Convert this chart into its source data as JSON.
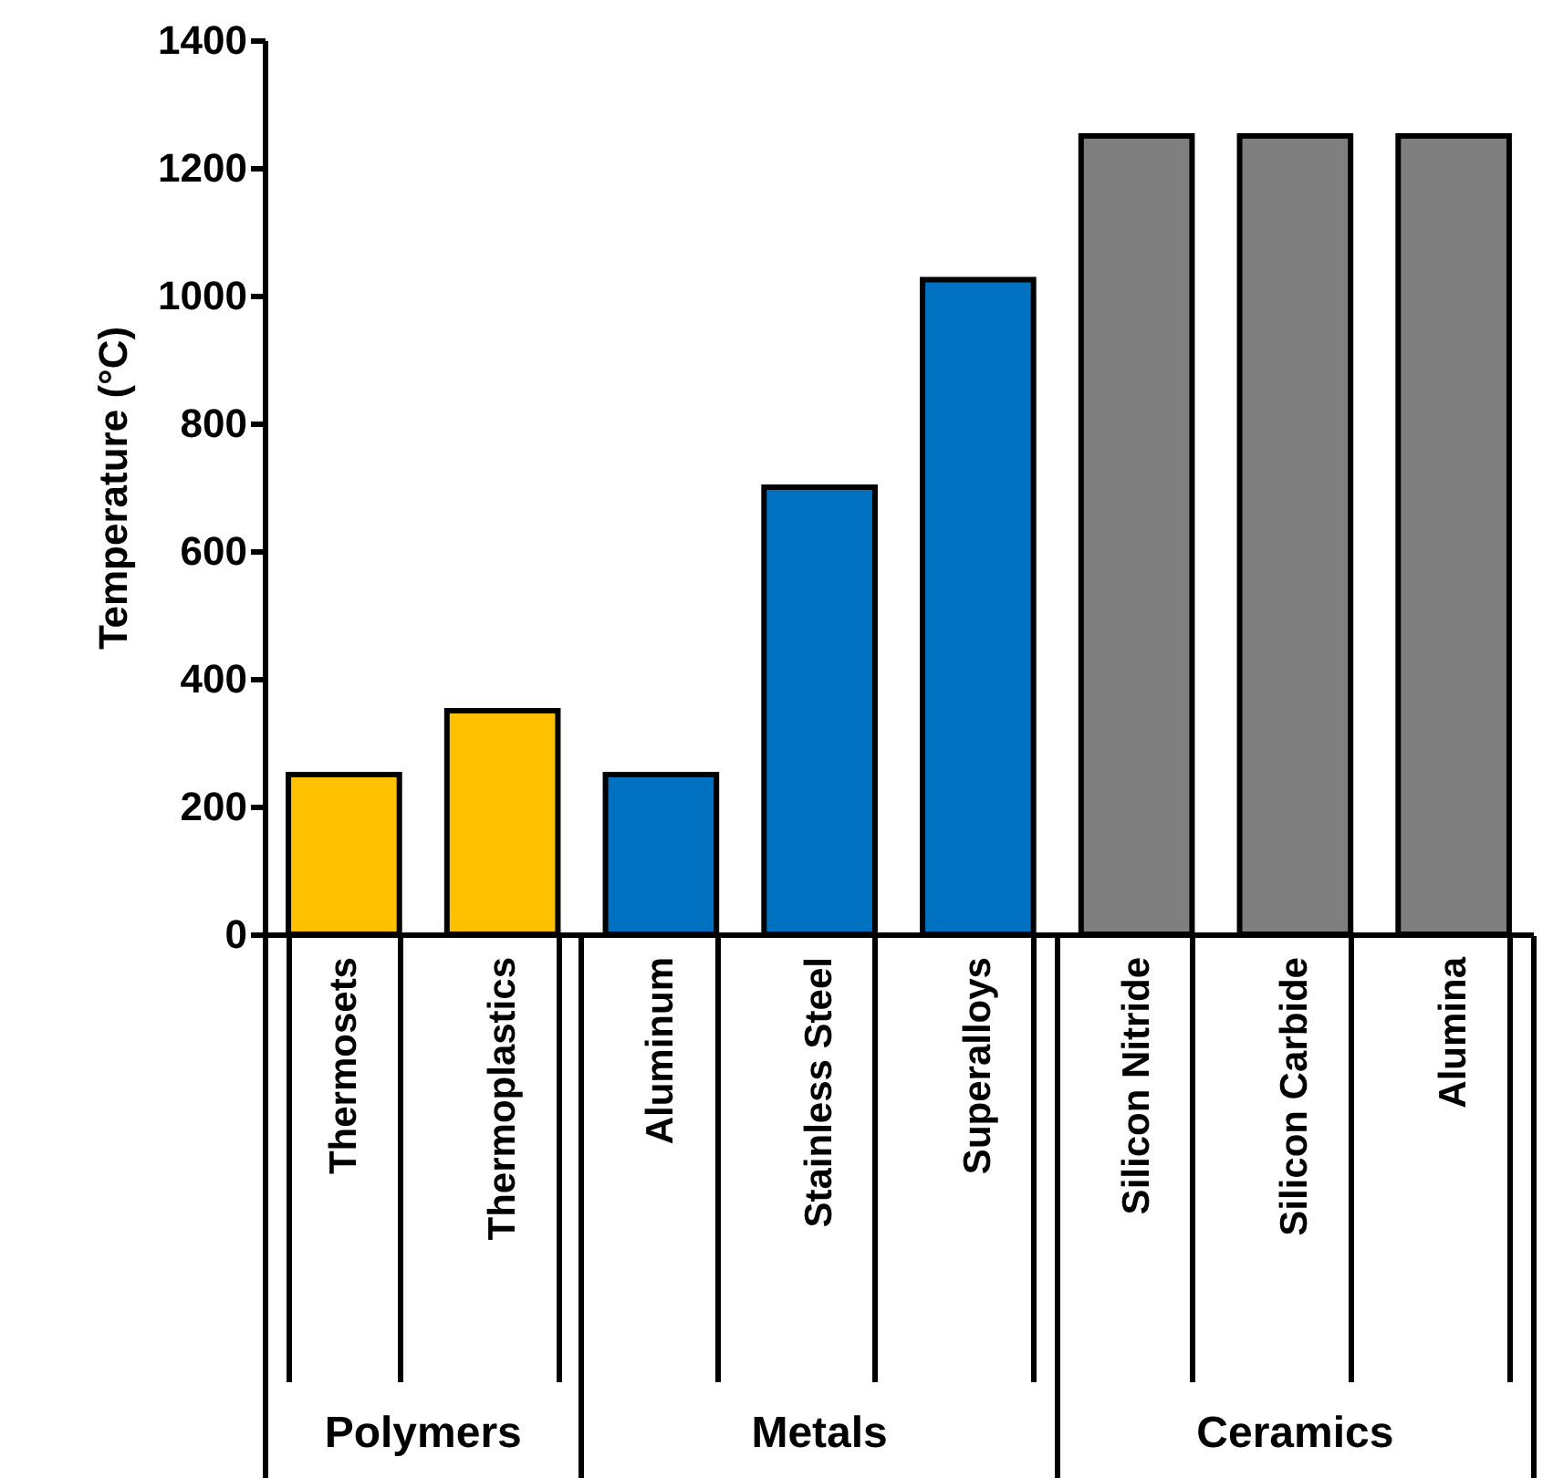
{
  "chart_data": {
    "type": "bar",
    "ylabel": "Temperature (°C)",
    "categories": [
      "Thermosets",
      "Thermoplastics",
      "Aluminum",
      "Stainless Steel",
      "Superalloys",
      "Silicon Nitride",
      "Silicon Carbide",
      "Alumina"
    ],
    "values": [
      250,
      350,
      250,
      700,
      1025,
      1250,
      1250,
      1250
    ],
    "colors": [
      "#ffc000",
      "#ffc000",
      "#0070c0",
      "#0070c0",
      "#0070c0",
      "#7f7f7f",
      "#7f7f7f",
      "#7f7f7f"
    ],
    "ylim": [
      0,
      1400
    ],
    "yticks": [
      0,
      200,
      400,
      600,
      800,
      1000,
      1200,
      1400
    ],
    "grid": false,
    "annotations": [
      "Polymers",
      "Metals",
      "Ceramics"
    ]
  }
}
